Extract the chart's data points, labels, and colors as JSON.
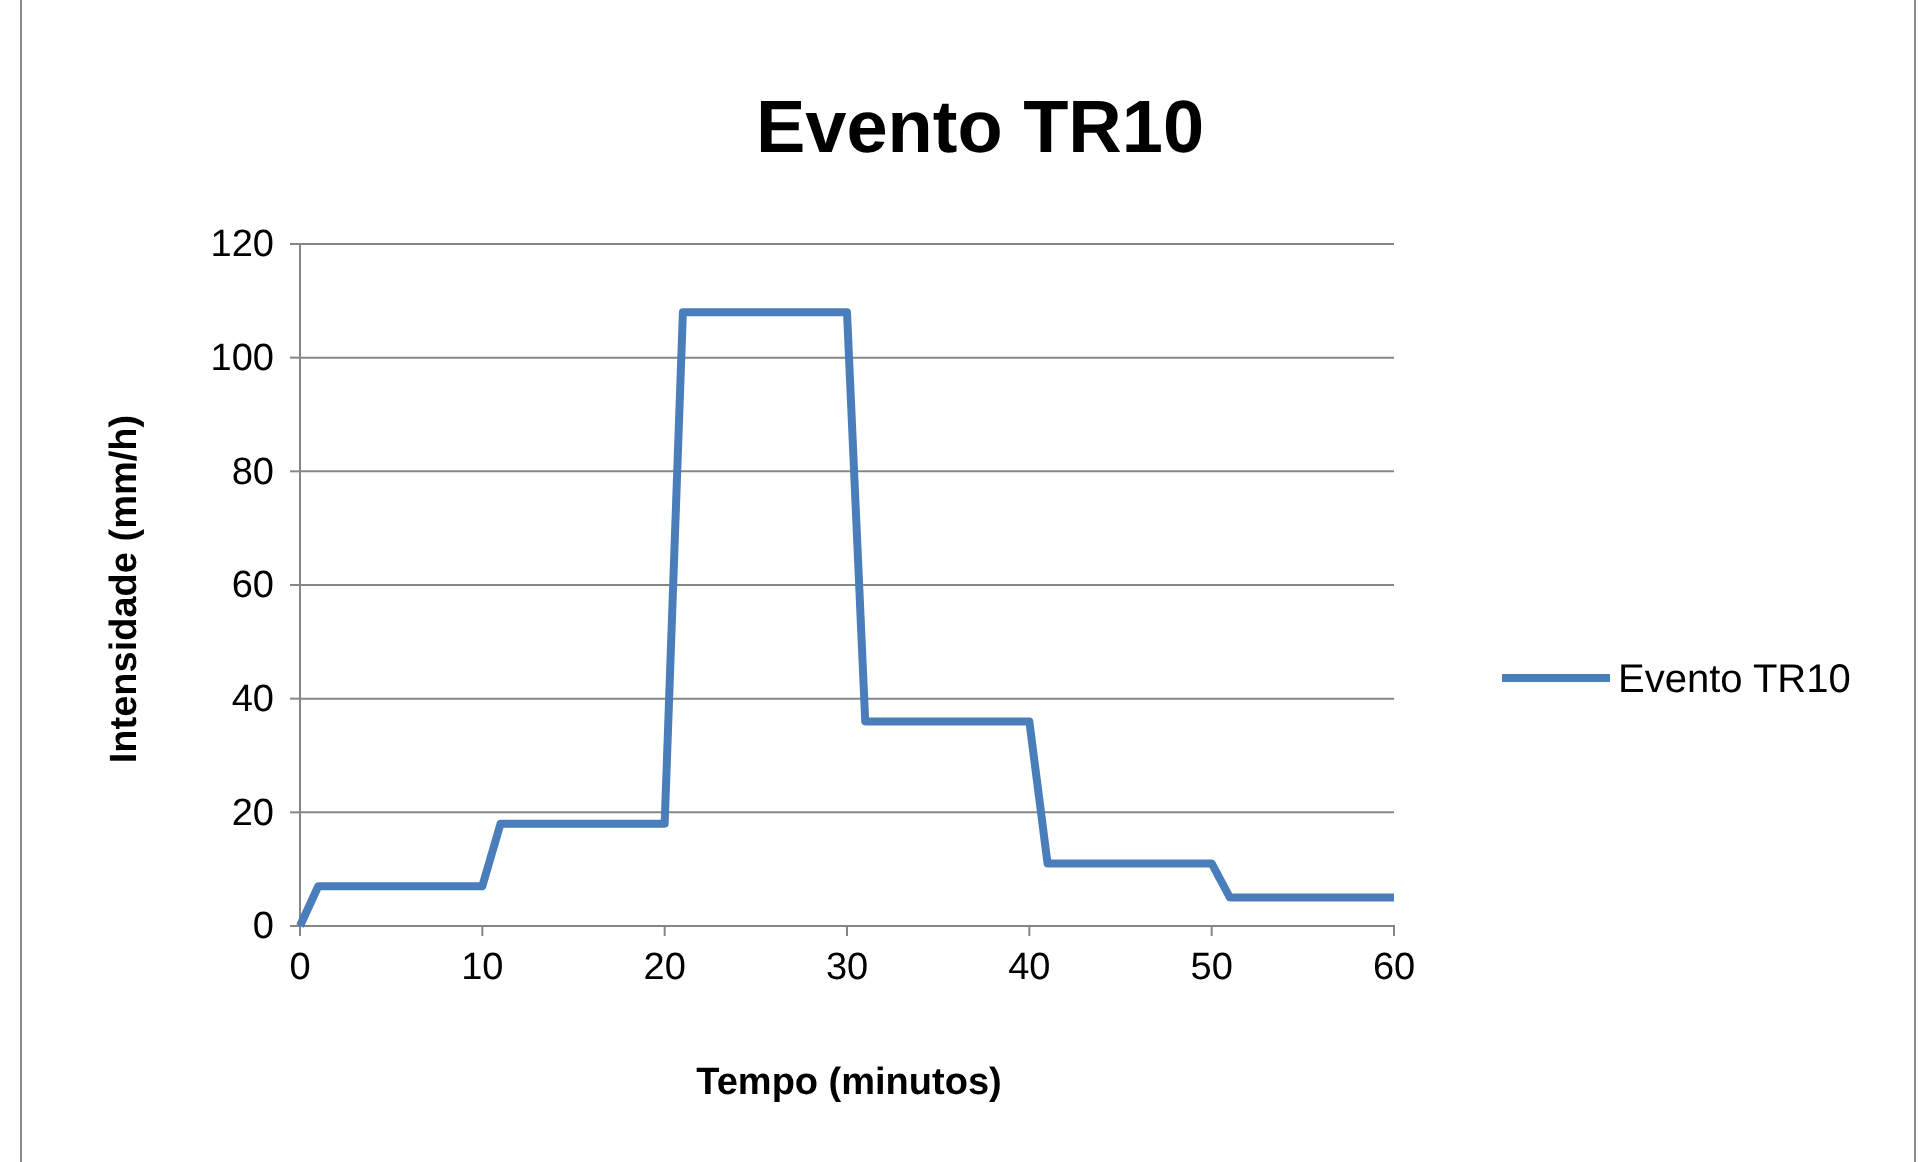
{
  "chart_data": {
    "type": "line",
    "title": "Evento TR10",
    "xlabel": "Tempo (minutos)",
    "ylabel": "Intensidade (mm/h)",
    "xlim": [
      0,
      60
    ],
    "xticks": [
      0,
      10,
      20,
      30,
      40,
      50,
      60
    ],
    "ylim": [
      0,
      120
    ],
    "yticks": [
      0,
      20,
      40,
      60,
      80,
      100,
      120
    ],
    "grid": "y",
    "legend": "right",
    "series": [
      {
        "name": "Evento TR10",
        "color": "#4a7ebb",
        "x": [
          0,
          1,
          10,
          11,
          20,
          21,
          30,
          31,
          40,
          41,
          50,
          51,
          60
        ],
        "values": [
          0,
          7,
          7,
          18,
          18,
          108,
          108,
          36,
          36,
          11,
          11,
          5,
          5
        ]
      }
    ]
  }
}
